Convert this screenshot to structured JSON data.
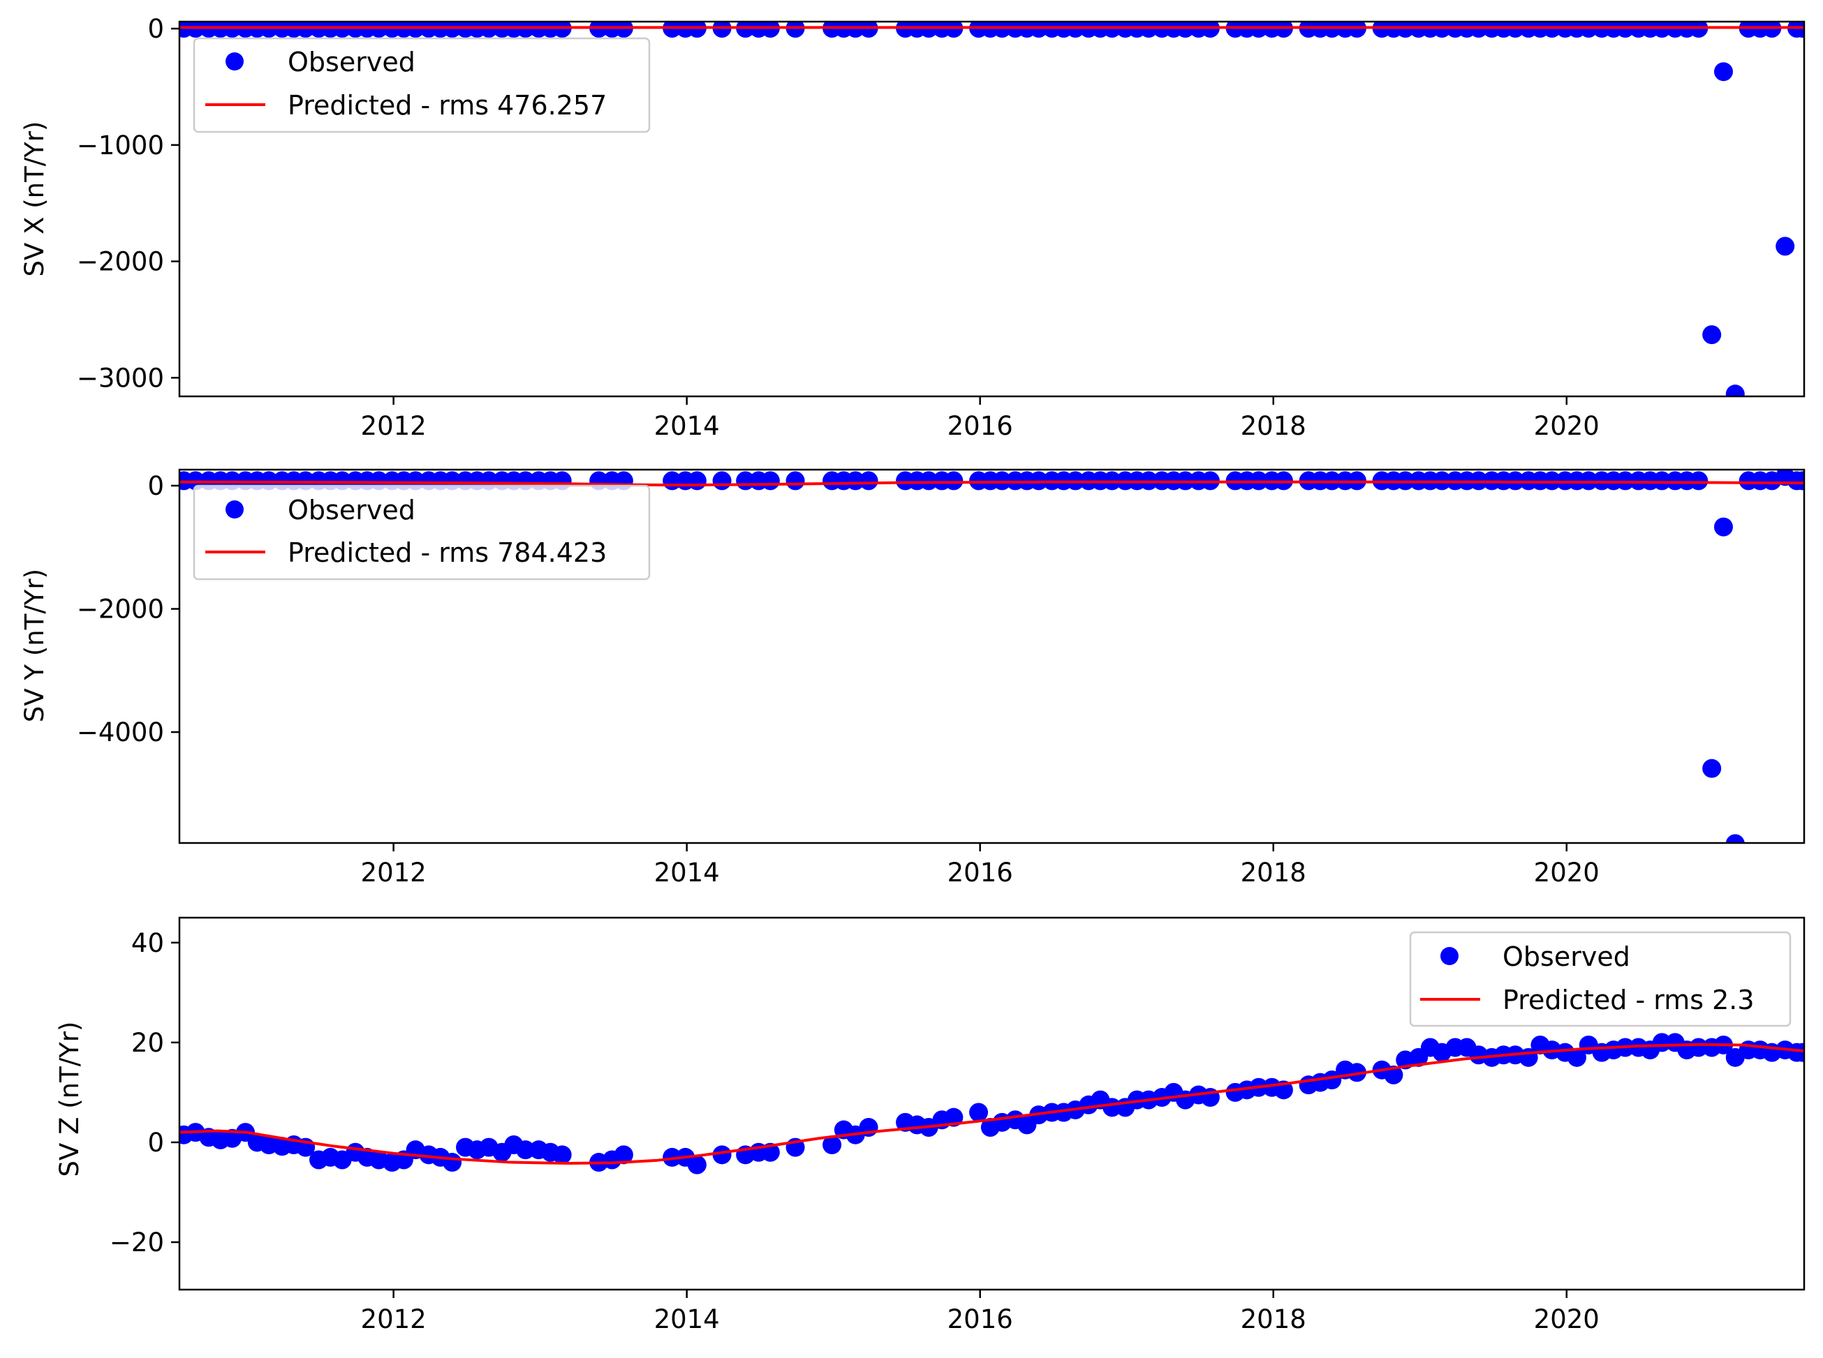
{
  "chart_data": [
    {
      "type": "scatter",
      "ylabel": "SV X (nT/Yr)",
      "xlabel": "",
      "xlim": [
        2010.54,
        2021.62
      ],
      "ylim": [
        -3160,
        60
      ],
      "xticks": [
        2012,
        2014,
        2016,
        2018,
        2020
      ],
      "yticks": [
        0,
        -1000,
        -2000,
        -3000
      ],
      "ytick_labels": [
        "0",
        "−1000",
        "−2000",
        "−3000"
      ],
      "legend_location": "upper left",
      "grid": false,
      "series": [
        {
          "name": "Observed",
          "marker": "circle",
          "color": "#0000ff",
          "x": [
            2010.57,
            2010.65,
            2010.74,
            2010.82,
            2010.9,
            2010.99,
            2011.07,
            2011.15,
            2011.24,
            2011.32,
            2011.4,
            2011.49,
            2011.57,
            2011.65,
            2011.74,
            2011.82,
            2011.9,
            2011.99,
            2012.07,
            2012.15,
            2012.24,
            2012.32,
            2012.4,
            2012.49,
            2012.57,
            2012.65,
            2012.74,
            2012.82,
            2012.9,
            2012.99,
            2013.07,
            2013.15,
            2013.4,
            2013.49,
            2013.57,
            2013.9,
            2013.99,
            2014.07,
            2014.24,
            2014.4,
            2014.49,
            2014.57,
            2014.74,
            2014.99,
            2015.07,
            2015.15,
            2015.24,
            2015.49,
            2015.57,
            2015.65,
            2015.74,
            2015.82,
            2015.99,
            2016.07,
            2016.15,
            2016.24,
            2016.32,
            2016.4,
            2016.49,
            2016.57,
            2016.65,
            2016.74,
            2016.82,
            2016.9,
            2016.99,
            2017.07,
            2017.15,
            2017.24,
            2017.32,
            2017.4,
            2017.49,
            2017.57,
            2017.74,
            2017.82,
            2017.9,
            2017.99,
            2018.07,
            2018.24,
            2018.32,
            2018.4,
            2018.49,
            2018.57,
            2018.74,
            2018.82,
            2018.9,
            2018.99,
            2019.07,
            2019.15,
            2019.24,
            2019.32,
            2019.4,
            2019.49,
            2019.57,
            2019.65,
            2019.74,
            2019.82,
            2019.9,
            2019.99,
            2020.07,
            2020.15,
            2020.24,
            2020.32,
            2020.4,
            2020.49,
            2020.57,
            2020.65,
            2020.74,
            2020.82,
            2020.9,
            2020.99,
            2021.07,
            2021.15,
            2021.24,
            2021.32,
            2021.4,
            2021.49,
            2021.57,
            2021.61
          ],
          "y": [
            3,
            3,
            3,
            3,
            3,
            3,
            3,
            3,
            3,
            3,
            3,
            3,
            3,
            3,
            3,
            3,
            3,
            3,
            3,
            3,
            3,
            3,
            3,
            3,
            3,
            3,
            3,
            3,
            3,
            3,
            3,
            3,
            3,
            3,
            3,
            3,
            3,
            3,
            3,
            3,
            3,
            3,
            3,
            3,
            3,
            3,
            3,
            3,
            3,
            3,
            3,
            3,
            3,
            3,
            3,
            3,
            3,
            3,
            3,
            3,
            3,
            3,
            3,
            3,
            3,
            3,
            3,
            3,
            3,
            3,
            3,
            3,
            3,
            3,
            3,
            3,
            3,
            3,
            3,
            3,
            3,
            3,
            3,
            3,
            3,
            3,
            3,
            3,
            3,
            3,
            3,
            3,
            3,
            3,
            3,
            3,
            3,
            3,
            3,
            3,
            3,
            3,
            3,
            3,
            3,
            3,
            3,
            3,
            3,
            -2630,
            -370,
            -3140,
            3,
            3,
            3,
            -1870,
            3,
            3
          ]
        },
        {
          "name": "Predicted - rms 476.257",
          "line": true,
          "color": "#ff0000",
          "x": [
            2010.54,
            2021.62
          ],
          "y": [
            10,
            10
          ]
        }
      ]
    },
    {
      "type": "scatter",
      "ylabel": "SV Y (nT/Yr)",
      "xlabel": "",
      "xlim": [
        2010.54,
        2021.62
      ],
      "ylim": [
        -5800,
        260
      ],
      "xticks": [
        2012,
        2014,
        2016,
        2018,
        2020
      ],
      "yticks": [
        0,
        -2000,
        -4000
      ],
      "ytick_labels": [
        "0",
        "−2000",
        "−4000"
      ],
      "legend_location": "upper left",
      "grid": false,
      "series": [
        {
          "name": "Observed",
          "marker": "circle",
          "color": "#0000ff",
          "x": [
            2010.57,
            2010.65,
            2010.74,
            2010.82,
            2010.9,
            2010.99,
            2011.07,
            2011.15,
            2011.24,
            2011.32,
            2011.4,
            2011.49,
            2011.57,
            2011.65,
            2011.74,
            2011.82,
            2011.9,
            2011.99,
            2012.07,
            2012.15,
            2012.24,
            2012.32,
            2012.4,
            2012.49,
            2012.57,
            2012.65,
            2012.74,
            2012.82,
            2012.9,
            2012.99,
            2013.07,
            2013.15,
            2013.4,
            2013.49,
            2013.57,
            2013.9,
            2013.99,
            2014.07,
            2014.24,
            2014.4,
            2014.49,
            2014.57,
            2014.74,
            2014.99,
            2015.07,
            2015.15,
            2015.24,
            2015.49,
            2015.57,
            2015.65,
            2015.74,
            2015.82,
            2015.99,
            2016.07,
            2016.15,
            2016.24,
            2016.32,
            2016.4,
            2016.49,
            2016.57,
            2016.65,
            2016.74,
            2016.82,
            2016.9,
            2016.99,
            2017.07,
            2017.15,
            2017.24,
            2017.32,
            2017.4,
            2017.49,
            2017.57,
            2017.74,
            2017.82,
            2017.9,
            2017.99,
            2018.07,
            2018.24,
            2018.32,
            2018.4,
            2018.49,
            2018.57,
            2018.74,
            2018.82,
            2018.9,
            2018.99,
            2019.07,
            2019.15,
            2019.24,
            2019.32,
            2019.4,
            2019.49,
            2019.57,
            2019.65,
            2019.74,
            2019.82,
            2019.9,
            2019.99,
            2020.07,
            2020.15,
            2020.24,
            2020.32,
            2020.4,
            2020.49,
            2020.57,
            2020.65,
            2020.74,
            2020.82,
            2020.9,
            2020.99,
            2021.07,
            2021.15,
            2021.24,
            2021.32,
            2021.4,
            2021.49,
            2021.57,
            2021.61
          ],
          "y": [
            80,
            80,
            80,
            80,
            80,
            80,
            80,
            80,
            80,
            80,
            80,
            80,
            80,
            80,
            80,
            80,
            80,
            80,
            80,
            80,
            80,
            80,
            80,
            80,
            80,
            80,
            80,
            80,
            80,
            80,
            80,
            80,
            80,
            80,
            80,
            80,
            80,
            80,
            80,
            80,
            80,
            80,
            80,
            80,
            80,
            80,
            80,
            80,
            80,
            80,
            80,
            80,
            80,
            80,
            80,
            80,
            80,
            80,
            80,
            80,
            80,
            80,
            80,
            80,
            80,
            80,
            80,
            80,
            80,
            80,
            80,
            80,
            80,
            80,
            80,
            80,
            80,
            80,
            80,
            80,
            80,
            80,
            80,
            80,
            80,
            80,
            80,
            80,
            80,
            80,
            80,
            80,
            80,
            80,
            80,
            80,
            80,
            80,
            80,
            80,
            80,
            80,
            80,
            80,
            80,
            80,
            80,
            80,
            80,
            -4590,
            -670,
            -5810,
            80,
            80,
            80,
            150,
            80,
            80
          ]
        },
        {
          "name": "Predicted - rms 784.423",
          "line": true,
          "color": "#ff0000",
          "x": [
            2010.54,
            2011.5,
            2012.5,
            2013.2,
            2013.6,
            2014.0,
            2014.5,
            2015.5,
            2016.5,
            2017.5,
            2018.5,
            2019.5,
            2020.5,
            2021.0,
            2021.4,
            2021.62
          ],
          "y": [
            60,
            55,
            45,
            30,
            15,
            10,
            20,
            50,
            60,
            60,
            60,
            60,
            55,
            50,
            45,
            45
          ]
        }
      ]
    },
    {
      "type": "scatter",
      "ylabel": "SV Z (nT/Yr)",
      "xlabel": "",
      "xlim": [
        2010.54,
        2021.62
      ],
      "ylim": [
        -29.5,
        45
      ],
      "xticks": [
        2012,
        2014,
        2016,
        2018,
        2020
      ],
      "yticks": [
        40,
        20,
        0,
        -20
      ],
      "ytick_labels": [
        "40",
        "20",
        "0",
        "−20"
      ],
      "legend_location": "upper right",
      "grid": false,
      "series": [
        {
          "name": "Observed",
          "marker": "circle",
          "color": "#0000ff",
          "x": [
            2010.57,
            2010.65,
            2010.74,
            2010.82,
            2010.9,
            2010.99,
            2011.07,
            2011.15,
            2011.24,
            2011.32,
            2011.4,
            2011.49,
            2011.57,
            2011.65,
            2011.74,
            2011.82,
            2011.9,
            2011.99,
            2012.07,
            2012.15,
            2012.24,
            2012.32,
            2012.4,
            2012.49,
            2012.57,
            2012.65,
            2012.74,
            2012.82,
            2012.9,
            2012.99,
            2013.07,
            2013.15,
            2013.4,
            2013.49,
            2013.57,
            2013.9,
            2013.99,
            2014.07,
            2014.24,
            2014.4,
            2014.49,
            2014.57,
            2014.74,
            2014.99,
            2015.07,
            2015.15,
            2015.24,
            2015.49,
            2015.57,
            2015.65,
            2015.74,
            2015.82,
            2015.99,
            2016.07,
            2016.15,
            2016.24,
            2016.32,
            2016.4,
            2016.49,
            2016.57,
            2016.65,
            2016.74,
            2016.82,
            2016.9,
            2016.99,
            2017.07,
            2017.15,
            2017.24,
            2017.32,
            2017.4,
            2017.49,
            2017.57,
            2017.74,
            2017.82,
            2017.9,
            2017.99,
            2018.07,
            2018.24,
            2018.32,
            2018.4,
            2018.49,
            2018.57,
            2018.74,
            2018.82,
            2018.9,
            2018.99,
            2019.07,
            2019.15,
            2019.24,
            2019.32,
            2019.4,
            2019.49,
            2019.57,
            2019.65,
            2019.74,
            2019.82,
            2019.9,
            2019.99,
            2020.07,
            2020.15,
            2020.24,
            2020.32,
            2020.4,
            2020.49,
            2020.57,
            2020.65,
            2020.74,
            2020.82,
            2020.9,
            2020.99,
            2021.07,
            2021.15,
            2021.24,
            2021.32,
            2021.4,
            2021.49,
            2021.57,
            2021.61
          ],
          "y": [
            1.5,
            2.0,
            1.0,
            0.5,
            0.8,
            2.0,
            0.0,
            -0.5,
            -0.8,
            -0.5,
            -1.0,
            -3.5,
            -3.0,
            -3.5,
            -2.0,
            -3.0,
            -3.5,
            -4.0,
            -3.5,
            -1.5,
            -2.5,
            -3.0,
            -4.0,
            -1.0,
            -1.5,
            -1.0,
            -2.0,
            -0.5,
            -1.5,
            -1.5,
            -2.0,
            -2.5,
            -4.0,
            -3.5,
            -2.5,
            -3.0,
            -3.0,
            -4.5,
            -2.5,
            -2.5,
            -2.0,
            -2.0,
            -1.0,
            -0.5,
            2.5,
            1.5,
            3.0,
            4.0,
            3.5,
            3.0,
            4.5,
            5.0,
            6.0,
            3.0,
            4.0,
            4.5,
            3.5,
            5.5,
            6.0,
            6.0,
            6.5,
            7.5,
            8.5,
            7.0,
            7.0,
            8.5,
            8.5,
            9.0,
            10.0,
            8.5,
            9.5,
            9.0,
            10.0,
            10.5,
            11.0,
            11.0,
            10.5,
            11.5,
            12.0,
            12.5,
            14.5,
            14.0,
            14.5,
            13.5,
            16.5,
            17.0,
            19.0,
            18.0,
            19.0,
            19.0,
            17.5,
            17.0,
            17.5,
            17.5,
            17.0,
            19.5,
            18.5,
            18.0,
            17.0,
            19.5,
            18.0,
            18.5,
            19.0,
            19.0,
            18.5,
            20.0,
            20.0,
            18.5,
            19.0,
            19.0,
            19.5,
            17.0,
            18.5,
            18.5,
            18.0,
            18.5,
            18.0,
            18.0
          ]
        },
        {
          "name": "Predicted - rms 2.3",
          "line": true,
          "color": "#ff0000",
          "x": [
            2010.54,
            2010.8,
            2011.0,
            2011.3,
            2011.6,
            2012.0,
            2012.4,
            2012.8,
            2013.2,
            2013.5,
            2013.8,
            2014.1,
            2014.5,
            2014.9,
            2015.3,
            2015.7,
            2016.1,
            2016.5,
            2016.9,
            2017.3,
            2017.7,
            2018.1,
            2018.5,
            2018.9,
            2019.3,
            2019.7,
            2020.1,
            2020.5,
            2020.9,
            2021.2,
            2021.62
          ],
          "y": [
            2.0,
            2.3,
            2.0,
            0.5,
            -0.8,
            -2.2,
            -3.3,
            -4.0,
            -4.2,
            -4.1,
            -3.6,
            -2.6,
            -1.0,
            0.8,
            2.2,
            3.3,
            4.6,
            6.1,
            7.6,
            9.0,
            10.4,
            11.8,
            13.4,
            15.2,
            16.7,
            17.8,
            18.7,
            19.3,
            19.6,
            19.5,
            18.3
          ]
        }
      ]
    }
  ]
}
